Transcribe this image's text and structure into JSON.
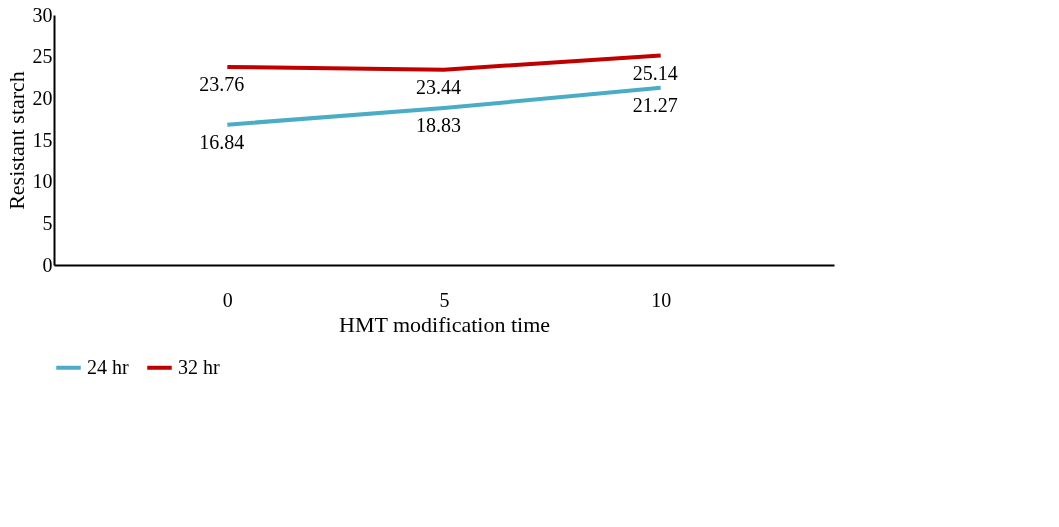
{
  "chart_data": {
    "type": "line",
    "xlabel": "HMT modification time",
    "ylabel": "Resistant starch",
    "categories": [
      "0",
      "5",
      "10"
    ],
    "series": [
      {
        "name": "24 hr",
        "color": "#4bacc6",
        "values": [
          16.84,
          18.83,
          21.27
        ]
      },
      {
        "name": "32 hr",
        "color": "#c00000",
        "values": [
          23.76,
          23.44,
          25.14
        ]
      }
    ],
    "ylim": [
      0,
      30
    ],
    "yticks": [
      0,
      5,
      10,
      15,
      20,
      25,
      30
    ],
    "grid": false,
    "legend": "bottom",
    "data_labels": true,
    "marker": "none",
    "line_style": "solid"
  }
}
